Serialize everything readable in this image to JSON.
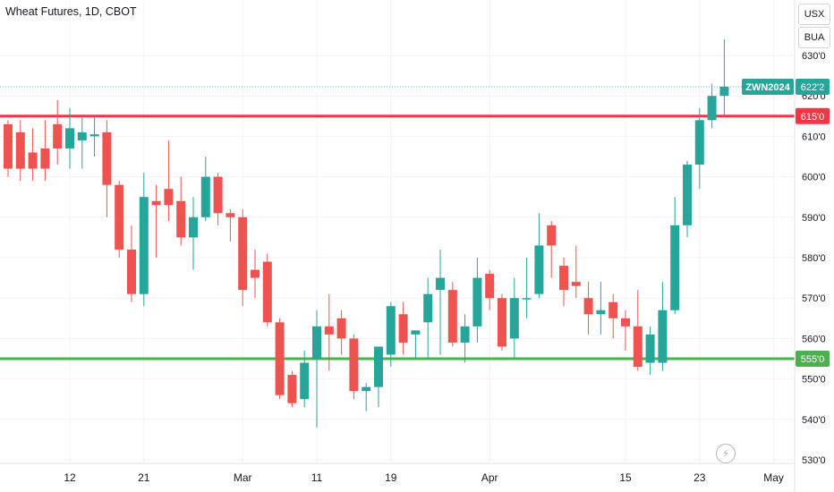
{
  "header": {
    "title": "Wheat Futures, 1D, CBOT"
  },
  "units": {
    "currency": "USX",
    "measure": "BUA"
  },
  "icons": {
    "lightning": "lightning-icon"
  },
  "colors": {
    "up": "#26a69a",
    "down": "#ef5350",
    "resistance": "#f23645",
    "support": "#4caf50",
    "grid": "#f0f3fa",
    "axis_text": "#131722"
  },
  "chart_data": {
    "type": "candlestick",
    "title": "Wheat Futures, 1D, CBOT",
    "ylim": [
      529,
      645
    ],
    "y_ticks": [
      {
        "v": 630,
        "label": "630'0"
      },
      {
        "v": 620,
        "label": "620'0"
      },
      {
        "v": 610,
        "label": "610'0"
      },
      {
        "v": 600,
        "label": "600'0"
      },
      {
        "v": 590,
        "label": "590'0"
      },
      {
        "v": 580,
        "label": "580'0"
      },
      {
        "v": 570,
        "label": "570'0"
      },
      {
        "v": 560,
        "label": "560'0"
      },
      {
        "v": 550,
        "label": "550'0"
      },
      {
        "v": 540,
        "label": "540'0"
      },
      {
        "v": 530,
        "label": "530'0"
      }
    ],
    "x_labels": [
      {
        "i": 5,
        "label": "12"
      },
      {
        "i": 11,
        "label": "21"
      },
      {
        "i": 19,
        "label": "Mar"
      },
      {
        "i": 25,
        "label": "11"
      },
      {
        "i": 31,
        "label": "19"
      },
      {
        "i": 39,
        "label": "Apr"
      },
      {
        "i": 50,
        "label": "15"
      },
      {
        "i": 56,
        "label": "23"
      },
      {
        "i": 62,
        "label": "May"
      }
    ],
    "last_price": {
      "value": 622.25,
      "label": "622'2",
      "symbol": "ZWN2024"
    },
    "levels": [
      {
        "value": 615,
        "label": "615'0",
        "kind": "resistance"
      },
      {
        "value": 555,
        "label": "555'0",
        "kind": "support"
      }
    ],
    "candles": [
      [
        613,
        614,
        600,
        602
      ],
      [
        611,
        614,
        599,
        602
      ],
      [
        606,
        612,
        599,
        602
      ],
      [
        607,
        614,
        599,
        602
      ],
      [
        613,
        619,
        603,
        607
      ],
      [
        607,
        617,
        602,
        612
      ],
      [
        609,
        615,
        602,
        611
      ],
      [
        610,
        615,
        605,
        610.5
      ],
      [
        611,
        614,
        590,
        598
      ],
      [
        598,
        599,
        580,
        582
      ],
      [
        582,
        588,
        569,
        571
      ],
      [
        571,
        601,
        568,
        595
      ],
      [
        594,
        598,
        580,
        593
      ],
      [
        597,
        609,
        589,
        593
      ],
      [
        594,
        600,
        583,
        585
      ],
      [
        585,
        595,
        577,
        590
      ],
      [
        590,
        605,
        589,
        600
      ],
      [
        600,
        601,
        588,
        591
      ],
      [
        591,
        592,
        584,
        590
      ],
      [
        590,
        592,
        568,
        572
      ],
      [
        577,
        582,
        570,
        575
      ],
      [
        579,
        581,
        563,
        564
      ],
      [
        564,
        565,
        545,
        546
      ],
      [
        551,
        552,
        543,
        544
      ],
      [
        545,
        557,
        543,
        554
      ],
      [
        555,
        567,
        538,
        563
      ],
      [
        563,
        571,
        552,
        561
      ],
      [
        565,
        567,
        556,
        560
      ],
      [
        560,
        561,
        545,
        547
      ],
      [
        547,
        549,
        542,
        548
      ],
      [
        548,
        558,
        543,
        558
      ],
      [
        556,
        569,
        553,
        568
      ],
      [
        566,
        569,
        556,
        559
      ],
      [
        561,
        562,
        555,
        562
      ],
      [
        564,
        575,
        555,
        571
      ],
      [
        572,
        582,
        556,
        575
      ],
      [
        572,
        574,
        558,
        559
      ],
      [
        559,
        566,
        554,
        563
      ],
      [
        563,
        580,
        559,
        575
      ],
      [
        576,
        577,
        567,
        570
      ],
      [
        570,
        571,
        557,
        558
      ],
      [
        560,
        575,
        555,
        570
      ],
      [
        570,
        580,
        565,
        570
      ],
      [
        571,
        591,
        570,
        583
      ],
      [
        588,
        589,
        575,
        583
      ],
      [
        578,
        580,
        568,
        572
      ],
      [
        574,
        583,
        570,
        573
      ],
      [
        570,
        574,
        561,
        566
      ],
      [
        566,
        574,
        561,
        567
      ],
      [
        569,
        571,
        560,
        565
      ],
      [
        565,
        567,
        557,
        563
      ],
      [
        563,
        572,
        552,
        553
      ],
      [
        554,
        563,
        551,
        561
      ],
      [
        554,
        574,
        552,
        567
      ],
      [
        567,
        595,
        566,
        588
      ],
      [
        588,
        604,
        585,
        603
      ],
      [
        603,
        617,
        597,
        614
      ],
      [
        614,
        623,
        612,
        620
      ],
      [
        620,
        634,
        615,
        622.25
      ]
    ]
  }
}
